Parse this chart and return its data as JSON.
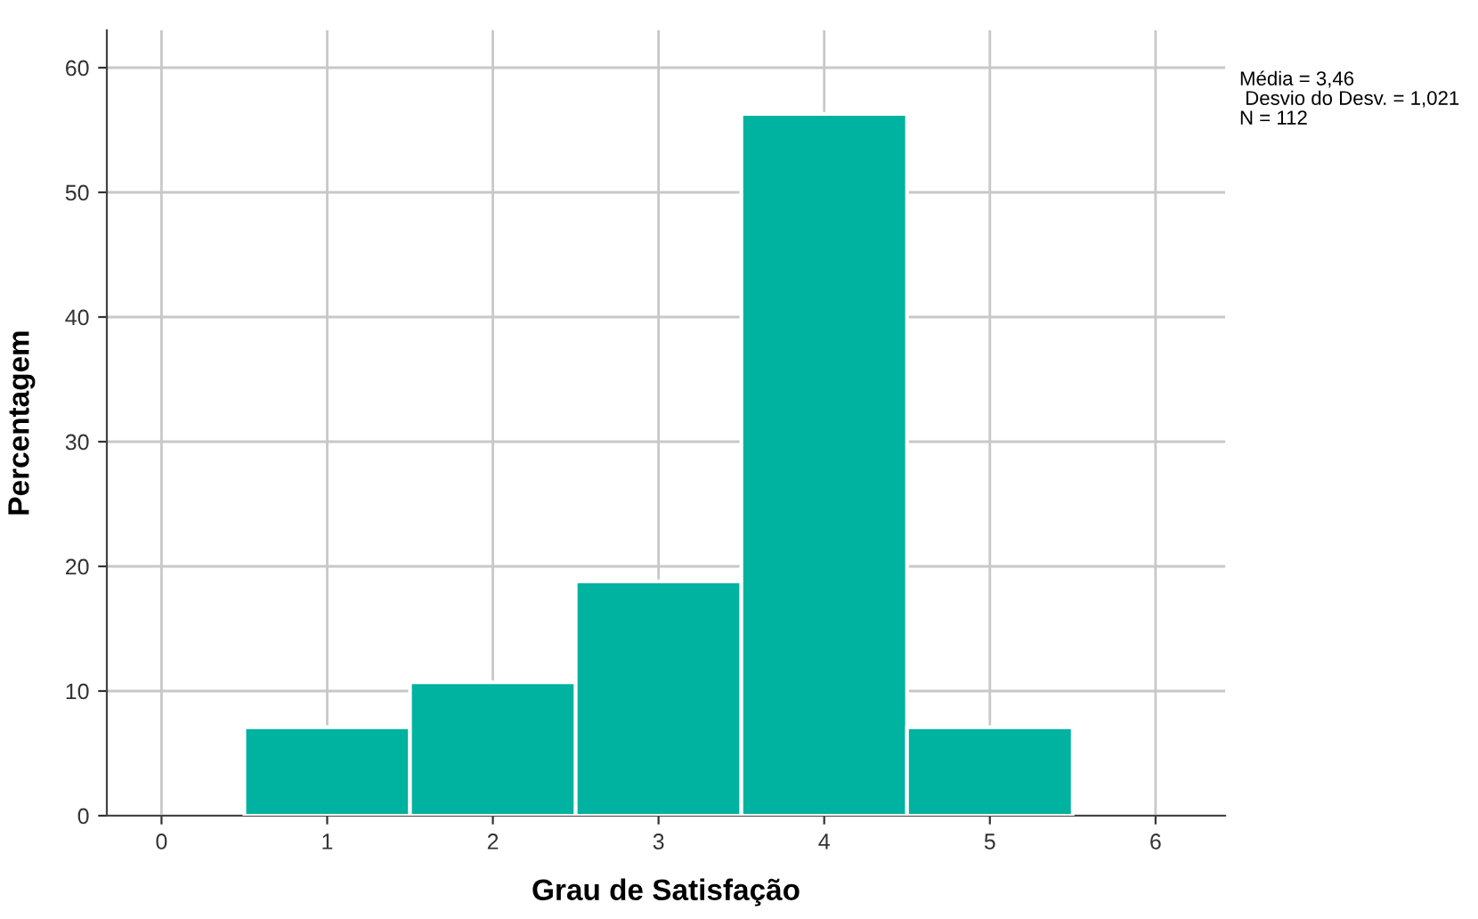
{
  "chart_data": {
    "type": "histogram",
    "xlabel": "Grau de Satisfação",
    "ylabel": "Percentagem",
    "bins": [
      0.5,
      1.5,
      2.5,
      3.5,
      4.5,
      5.5
    ],
    "values": [
      7.1,
      10.7,
      18.8,
      56.3,
      7.1
    ],
    "color": "#00b2a0",
    "xlim": [
      -0.33,
      6.42
    ],
    "ylim": [
      0,
      63
    ],
    "xticks": [
      0,
      1,
      2,
      3,
      4,
      5,
      6
    ],
    "yticks": [
      0,
      10,
      20,
      30,
      40,
      50,
      60
    ],
    "grid": true,
    "legend": false,
    "annotations": [
      "Média = 3,46",
      " Desvio do Desv. = 1,021",
      "N = 112"
    ]
  }
}
